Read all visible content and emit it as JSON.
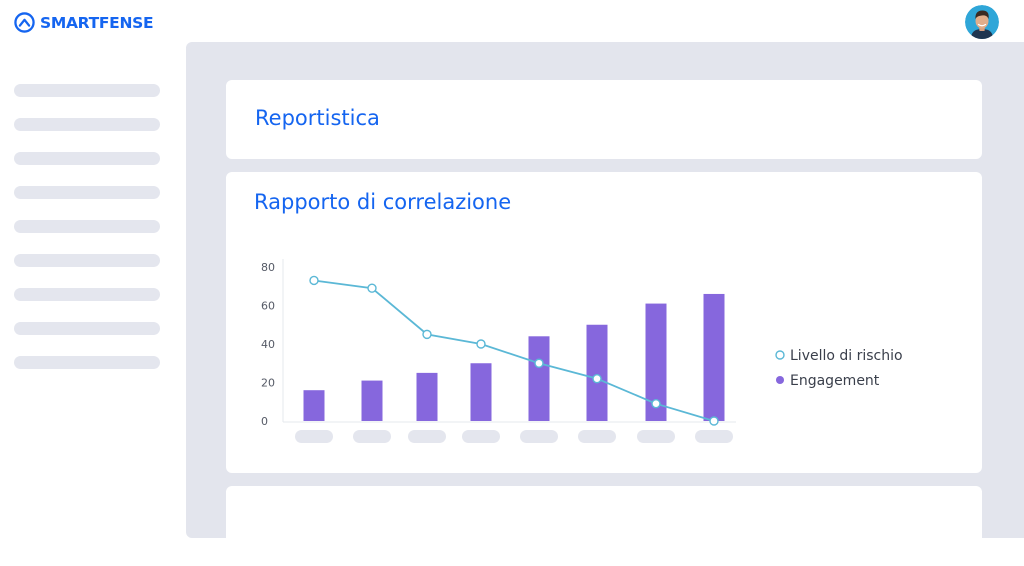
{
  "brand": {
    "name": "SMARTFENSE",
    "color": "#1565f0"
  },
  "user": {
    "avatar_icon": "user-avatar"
  },
  "sidebar": {
    "item_count": 9
  },
  "header": {
    "title": "Reportistica"
  },
  "report": {
    "title": "Rapporto di correlazione"
  },
  "chart_data": {
    "type": "bar",
    "categories": [
      "",
      "",
      "",
      "",
      "",
      "",
      "",
      ""
    ],
    "y_ticks": [
      0,
      20,
      40,
      60,
      80
    ],
    "ylim": [
      0,
      80
    ],
    "grid": false,
    "legend_position": "right",
    "series": [
      {
        "name": "Livello di rischio",
        "type": "line",
        "color": "#5bb8d6",
        "values": [
          73,
          69,
          45,
          40,
          30,
          22,
          9,
          0
        ]
      },
      {
        "name": "Engagement",
        "type": "bar",
        "color": "#8667dd",
        "values": [
          16,
          21,
          25,
          30,
          44,
          50,
          61,
          66
        ]
      }
    ]
  }
}
